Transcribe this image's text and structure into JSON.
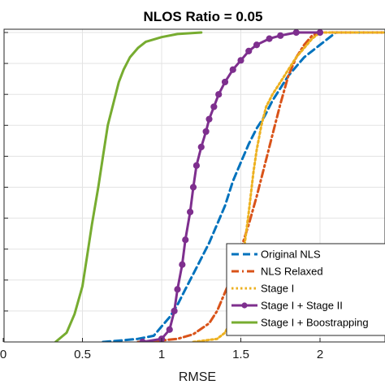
{
  "chart_data": {
    "type": "line",
    "title": "NLOS Ratio = 0.05",
    "xlabel": "RMSE",
    "ylabel": "",
    "xlim": [
      0,
      2.4
    ],
    "ylim": [
      0,
      1
    ],
    "x_ticks": [
      0,
      0.5,
      1,
      1.5,
      2
    ],
    "x_tick_labels": [
      "0",
      "0.5",
      "1",
      "1.5",
      "2"
    ],
    "grid": true,
    "legend_position": "bottom-right",
    "series": [
      {
        "name": "Original NLS",
        "color": "#0072BD",
        "style": "dashed",
        "x": [
          0.63,
          0.75,
          0.85,
          0.95,
          1.0,
          1.05,
          1.1,
          1.15,
          1.2,
          1.25,
          1.3,
          1.35,
          1.4,
          1.45,
          1.5,
          1.55,
          1.6,
          1.65,
          1.7,
          1.8,
          1.9,
          2.0,
          2.1,
          2.4
        ],
        "y": [
          0.0,
          0.005,
          0.01,
          0.02,
          0.05,
          0.08,
          0.12,
          0.17,
          0.22,
          0.27,
          0.32,
          0.38,
          0.44,
          0.52,
          0.58,
          0.64,
          0.69,
          0.73,
          0.78,
          0.86,
          0.92,
          0.96,
          1.0,
          1.0
        ]
      },
      {
        "name": "NLS Relaxed",
        "color": "#D95319",
        "style": "dashdot",
        "x": [
          0.85,
          1.0,
          1.1,
          1.2,
          1.3,
          1.35,
          1.4,
          1.45,
          1.5,
          1.55,
          1.6,
          1.65,
          1.7,
          1.75,
          1.8,
          1.85,
          1.9,
          1.95,
          2.0,
          2.05,
          2.4
        ],
        "y": [
          0.0,
          0.005,
          0.01,
          0.025,
          0.06,
          0.1,
          0.16,
          0.22,
          0.3,
          0.38,
          0.47,
          0.57,
          0.67,
          0.77,
          0.86,
          0.92,
          0.96,
          0.99,
          1.0,
          1.0,
          1.0
        ]
      },
      {
        "name": "Stage I",
        "color": "#EDB120",
        "style": "dotted",
        "x": [
          1.2,
          1.35,
          1.4,
          1.45,
          1.5,
          1.52,
          1.55,
          1.58,
          1.6,
          1.63,
          1.66,
          1.7,
          1.75,
          1.8,
          1.85,
          1.9,
          1.95,
          2.0,
          2.1,
          2.4
        ],
        "y": [
          0.0,
          0.01,
          0.03,
          0.08,
          0.2,
          0.3,
          0.42,
          0.55,
          0.62,
          0.7,
          0.76,
          0.8,
          0.84,
          0.88,
          0.92,
          0.95,
          0.98,
          1.0,
          1.0,
          1.0
        ]
      },
      {
        "name": "Stage I + Stage II",
        "color": "#7E2F8E",
        "style": "solid-marker",
        "x": [
          0.88,
          1.0,
          1.05,
          1.08,
          1.1,
          1.13,
          1.15,
          1.18,
          1.2,
          1.22,
          1.25,
          1.28,
          1.3,
          1.33,
          1.36,
          1.4,
          1.45,
          1.5,
          1.55,
          1.6,
          1.68,
          1.75,
          1.85,
          2.0
        ],
        "y": [
          0.0,
          0.01,
          0.04,
          0.1,
          0.17,
          0.25,
          0.33,
          0.42,
          0.5,
          0.57,
          0.63,
          0.68,
          0.72,
          0.76,
          0.8,
          0.84,
          0.88,
          0.91,
          0.94,
          0.96,
          0.98,
          0.99,
          1.0,
          1.0
        ]
      },
      {
        "name": "Stage I + Boostrapping",
        "color": "#77AC30",
        "style": "solid",
        "x": [
          0.33,
          0.4,
          0.45,
          0.5,
          0.53,
          0.56,
          0.6,
          0.63,
          0.66,
          0.7,
          0.73,
          0.76,
          0.8,
          0.85,
          0.9,
          1.0,
          1.1,
          1.25
        ],
        "y": [
          0.0,
          0.03,
          0.09,
          0.18,
          0.28,
          0.38,
          0.5,
          0.6,
          0.7,
          0.78,
          0.84,
          0.88,
          0.92,
          0.95,
          0.97,
          0.985,
          0.995,
          1.0
        ]
      }
    ]
  }
}
